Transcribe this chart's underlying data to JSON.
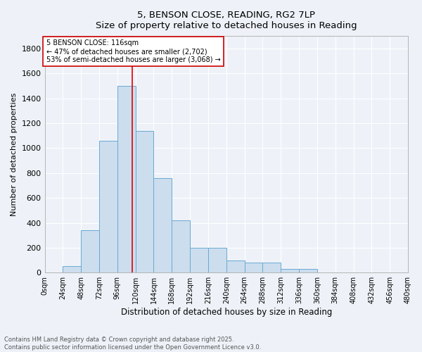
{
  "title": "5, BENSON CLOSE, READING, RG2 7LP",
  "subtitle": "Size of property relative to detached houses in Reading",
  "xlabel": "Distribution of detached houses by size in Reading",
  "ylabel": "Number of detached properties",
  "bar_color": "#ccdded",
  "bar_edge_color": "#6aaad4",
  "bin_edges": [
    0,
    24,
    48,
    72,
    96,
    120,
    144,
    168,
    192,
    216,
    240,
    264,
    288,
    312,
    336,
    360,
    384,
    408,
    432,
    456,
    480
  ],
  "bar_heights": [
    0,
    50,
    340,
    1060,
    1500,
    1140,
    760,
    420,
    200,
    200,
    100,
    80,
    80,
    30,
    30,
    0,
    0,
    0,
    0,
    0
  ],
  "property_size": 116,
  "red_line_color": "#dd0000",
  "annotation_text": "5 BENSON CLOSE: 116sqm\n← 47% of detached houses are smaller (2,702)\n53% of semi-detached houses are larger (3,068) →",
  "annotation_box_color": "#ffffff",
  "annotation_box_edge_color": "#cc0000",
  "ylim": [
    0,
    1900
  ],
  "yticks": [
    0,
    200,
    400,
    600,
    800,
    1000,
    1200,
    1400,
    1600,
    1800
  ],
  "bg_color": "#eef2f8",
  "grid_color": "#ffffff",
  "footnote": "Contains HM Land Registry data © Crown copyright and database right 2025.\nContains public sector information licensed under the Open Government Licence v3.0."
}
